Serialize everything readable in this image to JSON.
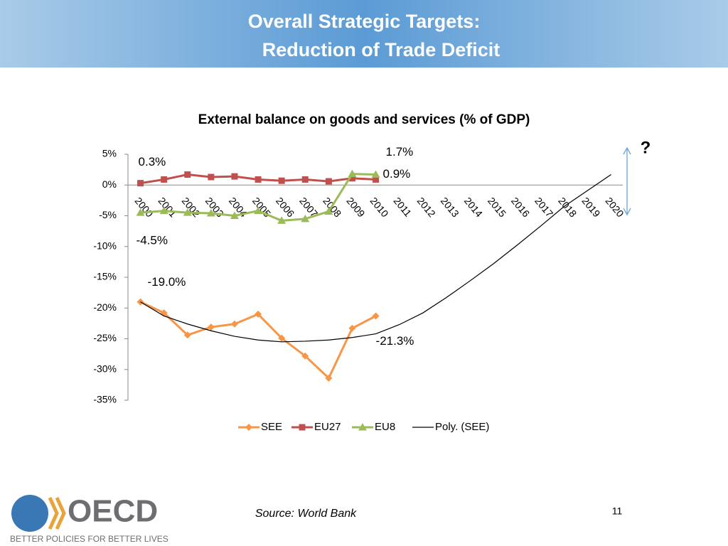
{
  "header": {
    "title_lines": [
      "Overall Strategic Targets:",
      "Reduction of Trade Deficit"
    ]
  },
  "chart_data": {
    "type": "line",
    "title": "External balance on goods and services (% of GDP)",
    "categories": [
      "2000",
      "2001",
      "2002",
      "2003",
      "2004",
      "2005",
      "2006",
      "2007",
      "2008",
      "2009",
      "2010",
      "2011",
      "2012",
      "2013",
      "2014",
      "2015",
      "2016",
      "2017",
      "2018",
      "2019",
      "2020"
    ],
    "ylim": [
      -35,
      5
    ],
    "yticks": [
      {
        "value": -35,
        "label": "-35%"
      },
      {
        "value": -30,
        "label": "-30%"
      },
      {
        "value": -25,
        "label": "-25%"
      },
      {
        "value": -20,
        "label": "-20%"
      },
      {
        "value": -15,
        "label": "-15%"
      },
      {
        "value": -10,
        "label": "-10%"
      },
      {
        "value": -5,
        "label": "-5%"
      },
      {
        "value": 0,
        "label": "0%"
      },
      {
        "value": 5,
        "label": "5%"
      }
    ],
    "grid": false,
    "legend": "bottom",
    "series": [
      {
        "name": "SEE",
        "color": "#f79646",
        "marker": "diamond",
        "values": [
          -19.0,
          -20.8,
          -24.4,
          -23.1,
          -22.6,
          -21.0,
          -24.9,
          -27.8,
          -31.4,
          -23.3,
          -21.3,
          null,
          null,
          null,
          null,
          null,
          null,
          null,
          null,
          null,
          null
        ],
        "value_labels": [
          "-19.0%",
          null,
          null,
          null,
          null,
          null,
          null,
          null,
          null,
          null,
          "-21.3%",
          null,
          null,
          null,
          null,
          null,
          null,
          null,
          null,
          null,
          null
        ]
      },
      {
        "name": "EU27",
        "color": "#c0504d",
        "marker": "square",
        "values": [
          0.3,
          0.9,
          1.7,
          1.3,
          1.4,
          0.9,
          0.7,
          0.9,
          0.6,
          1.1,
          0.9,
          null,
          null,
          null,
          null,
          null,
          null,
          null,
          null,
          null,
          null
        ],
        "value_labels": [
          "0.3%",
          null,
          null,
          null,
          null,
          null,
          null,
          null,
          null,
          null,
          "0.9%",
          null,
          null,
          null,
          null,
          null,
          null,
          null,
          null,
          null,
          null
        ]
      },
      {
        "name": "EU8",
        "color": "#9bbb59",
        "marker": "triangle",
        "values": [
          -4.5,
          -4.2,
          -4.5,
          -4.6,
          -5.0,
          -4.2,
          -5.8,
          -5.5,
          -4.3,
          1.8,
          1.7,
          null,
          null,
          null,
          null,
          null,
          null,
          null,
          null,
          null,
          null
        ],
        "value_labels": [
          "-4.5%",
          null,
          null,
          null,
          null,
          null,
          null,
          null,
          null,
          null,
          "1.7%",
          null,
          null,
          null,
          null,
          null,
          null,
          null,
          null,
          null,
          null
        ]
      },
      {
        "name": "Poly. (SEE)",
        "color": "#000000",
        "marker": "none",
        "values": [
          -19.0,
          -21.3,
          -22.6,
          -23.7,
          -24.6,
          -25.2,
          -25.5,
          -25.4,
          -25.2,
          -24.8,
          -24.2,
          -22.7,
          -20.8,
          -18.3,
          -15.6,
          -12.8,
          -9.8,
          -6.7,
          -3.5,
          -0.9,
          1.7
        ]
      }
    ],
    "annotation": "?"
  },
  "footer": {
    "source": "Source: World Bank",
    "page_number": "11",
    "logo": "OECD",
    "tagline": "BETTER POLICIES FOR BETTER LIVES"
  }
}
